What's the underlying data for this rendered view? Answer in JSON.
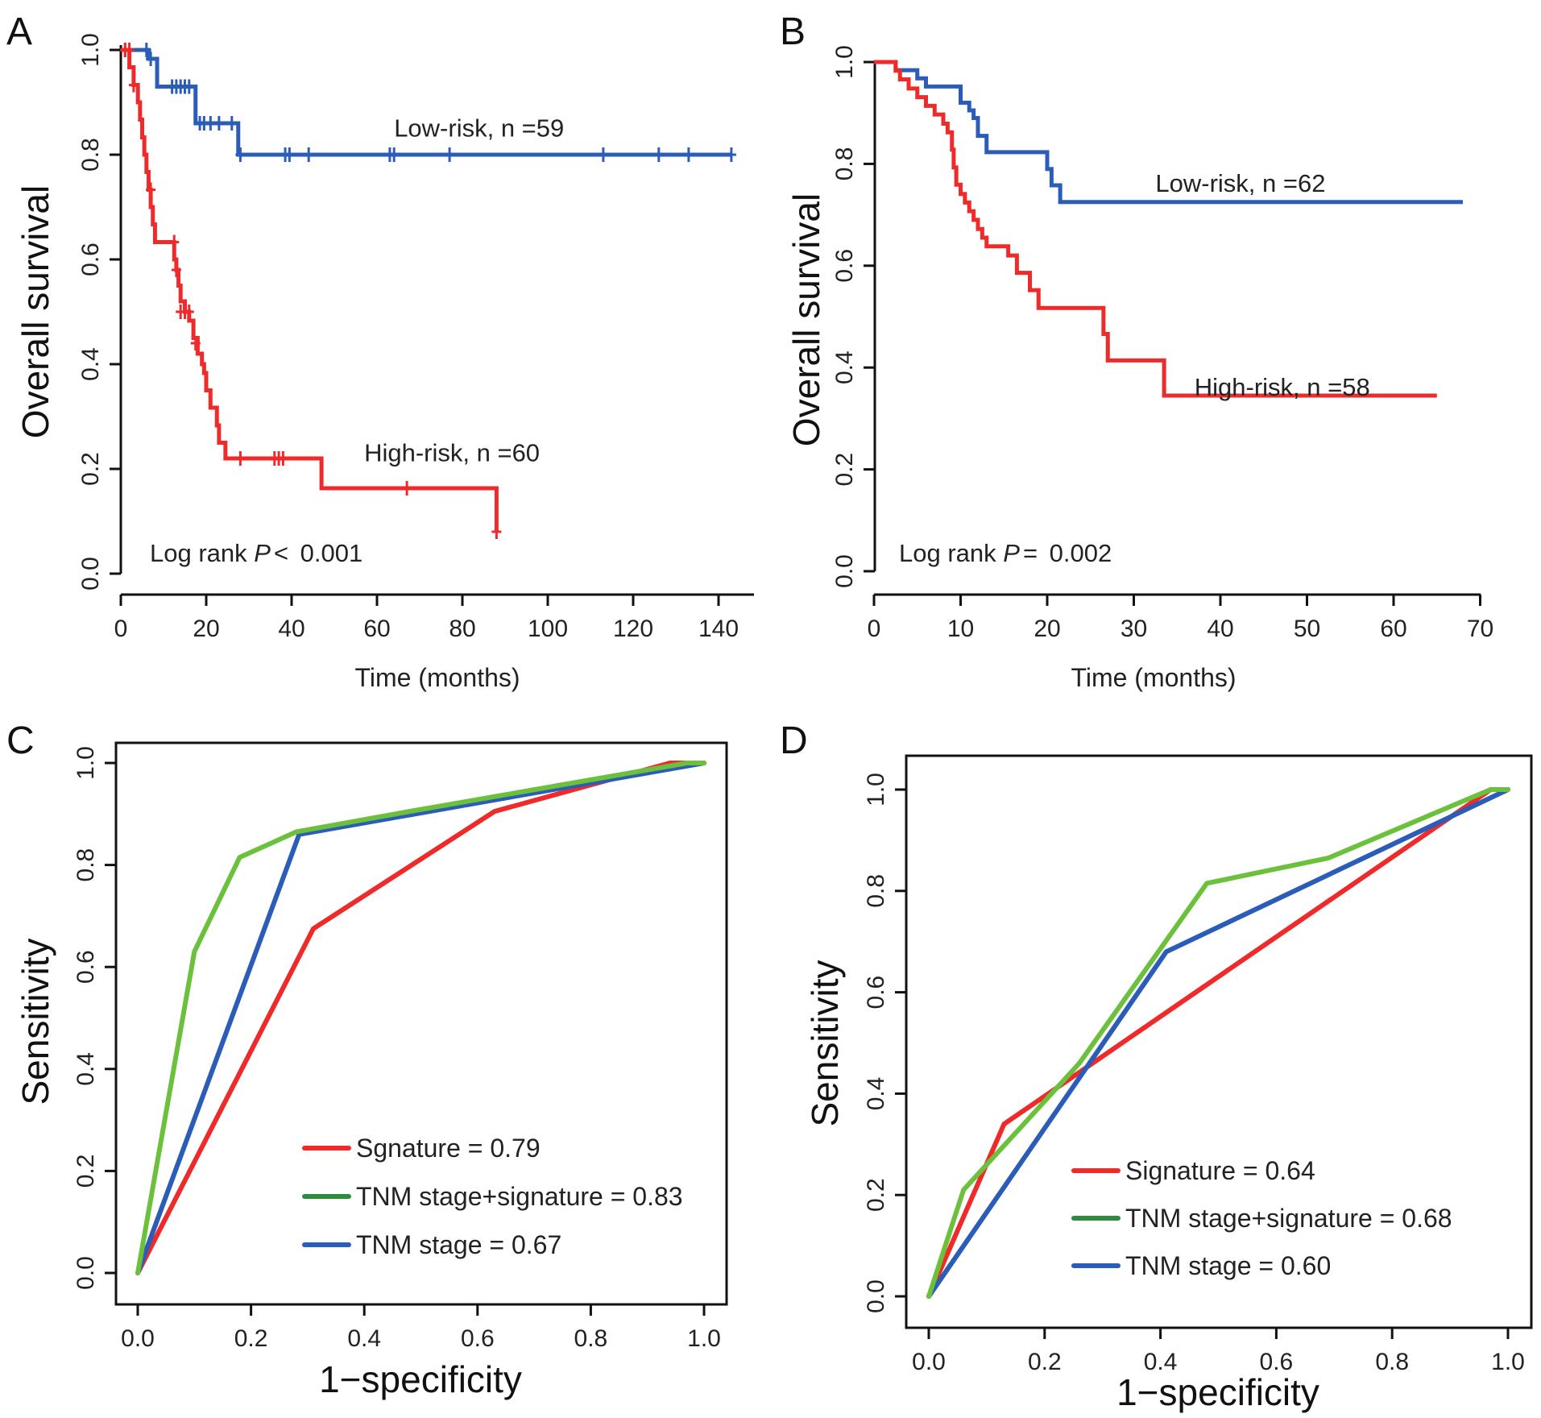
{
  "colors": {
    "low_risk": "#2a5cb8",
    "high_risk": "#ee2a2a",
    "signature": "#ee2a2a",
    "combined_curve": "#6cc13c",
    "combined_legend": "#2f8a3d",
    "tnm": "#2a5cb8",
    "axis": "#111111"
  },
  "chart_data": [
    {
      "panel": "A",
      "type": "line",
      "subtype": "kaplan-meier",
      "xlabel": "Time (months)",
      "ylabel": "Overall survival",
      "xlim": [
        0,
        145
      ],
      "ylim": [
        0,
        1
      ],
      "xticks": [
        0,
        20,
        40,
        60,
        80,
        100,
        120,
        140
      ],
      "yticks": [
        "0.0",
        "0.2",
        "0.4",
        "0.6",
        "0.8",
        "1.0"
      ],
      "annotation": {
        "prefix": "Log rank ",
        "p": "P",
        "op": "< ",
        "value": "0.001"
      },
      "series": [
        {
          "name": "Low-risk, n =59",
          "color_key": "low_risk",
          "steps": [
            [
              0,
              1.0
            ],
            [
              6.5,
              0.983
            ],
            [
              8.5,
              0.93
            ],
            [
              17.5,
              0.86
            ],
            [
              27.5,
              0.8
            ],
            [
              143,
              0.8
            ]
          ],
          "censor": [
            [
              1,
              1.0
            ],
            [
              6,
              1.0
            ],
            [
              7,
              0.983
            ],
            [
              12,
              0.93
            ],
            [
              13,
              0.93
            ],
            [
              14,
              0.93
            ],
            [
              15,
              0.93
            ],
            [
              16,
              0.93
            ],
            [
              18.5,
              0.86
            ],
            [
              19.5,
              0.86
            ],
            [
              21,
              0.86
            ],
            [
              23,
              0.86
            ],
            [
              26,
              0.86
            ],
            [
              28,
              0.8
            ],
            [
              38.5,
              0.8
            ],
            [
              39.5,
              0.8
            ],
            [
              44,
              0.8
            ],
            [
              63,
              0.8
            ],
            [
              64,
              0.8
            ],
            [
              77,
              0.8
            ],
            [
              113,
              0.8
            ],
            [
              126,
              0.8
            ],
            [
              133,
              0.8
            ],
            [
              143,
              0.8
            ]
          ]
        },
        {
          "name": "High-risk, n =60",
          "color_key": "high_risk",
          "steps": [
            [
              0,
              1.0
            ],
            [
              1.5,
              1.0
            ],
            [
              2,
              0.967
            ],
            [
              3,
              0.933
            ],
            [
              4,
              0.9
            ],
            [
              4.5,
              0.867
            ],
            [
              5,
              0.833
            ],
            [
              5.5,
              0.8
            ],
            [
              6,
              0.767
            ],
            [
              6.5,
              0.733
            ],
            [
              7,
              0.7
            ],
            [
              7.5,
              0.667
            ],
            [
              8,
              0.633
            ],
            [
              12,
              0.633
            ],
            [
              12.5,
              0.6
            ],
            [
              13,
              0.58
            ],
            [
              13.5,
              0.55
            ],
            [
              14,
              0.52
            ],
            [
              15,
              0.5
            ],
            [
              16,
              0.483
            ],
            [
              17,
              0.45
            ],
            [
              18,
              0.42
            ],
            [
              19,
              0.4
            ],
            [
              19.5,
              0.383
            ],
            [
              20,
              0.35
            ],
            [
              21,
              0.317
            ],
            [
              22.5,
              0.283
            ],
            [
              23,
              0.25
            ],
            [
              24.5,
              0.22
            ],
            [
              47,
              0.22
            ],
            [
              47,
              0.163
            ],
            [
              88,
              0.163
            ],
            [
              88,
              0.08
            ]
          ],
          "censor": [
            [
              1,
              1.0
            ],
            [
              2,
              1.0
            ],
            [
              3,
              0.933
            ],
            [
              7,
              0.733
            ],
            [
              12.5,
              0.633
            ],
            [
              13,
              0.58
            ],
            [
              14,
              0.5
            ],
            [
              15,
              0.5
            ],
            [
              16,
              0.5
            ],
            [
              17.5,
              0.44
            ],
            [
              28,
              0.22
            ],
            [
              36,
              0.22
            ],
            [
              37,
              0.22
            ],
            [
              38,
              0.22
            ],
            [
              67,
              0.163
            ],
            [
              88,
              0.08
            ]
          ]
        }
      ],
      "labels": [
        {
          "text": "Low-risk, n =59",
          "x": 64,
          "y": 0.835
        },
        {
          "text": "High-risk, n =60",
          "x": 57,
          "y": 0.215
        }
      ]
    },
    {
      "panel": "B",
      "type": "line",
      "subtype": "kaplan-meier",
      "xlabel": "Time (months)",
      "ylabel": "Overall survival",
      "xlim": [
        0,
        70
      ],
      "ylim": [
        0,
        1
      ],
      "xticks": [
        0,
        10,
        20,
        30,
        40,
        50,
        60,
        70
      ],
      "yticks": [
        "0.0",
        "0.2",
        "0.4",
        "0.6",
        "0.8",
        "1.0"
      ],
      "annotation": {
        "prefix": "Log rank ",
        "p": "P",
        "op": "= ",
        "value": "0.002"
      },
      "series": [
        {
          "name": "Low-risk, n =62",
          "color_key": "low_risk",
          "steps": [
            [
              0,
              1.0
            ],
            [
              2.5,
              1.0
            ],
            [
              2.5,
              0.984
            ],
            [
              5,
              0.984
            ],
            [
              5,
              0.968
            ],
            [
              6,
              0.968
            ],
            [
              6,
              0.952
            ],
            [
              10,
              0.952
            ],
            [
              10,
              0.92
            ],
            [
              11,
              0.92
            ],
            [
              11,
              0.905
            ],
            [
              11.5,
              0.89
            ],
            [
              12,
              0.874
            ],
            [
              12,
              0.855
            ],
            [
              13,
              0.855
            ],
            [
              13,
              0.823
            ],
            [
              20,
              0.823
            ],
            [
              20,
              0.79
            ],
            [
              20.5,
              0.79
            ],
            [
              20.5,
              0.758
            ],
            [
              21.5,
              0.758
            ],
            [
              21.5,
              0.725
            ],
            [
              68,
              0.725
            ]
          ],
          "censor": []
        },
        {
          "name": "High-risk, n =58",
          "color_key": "high_risk",
          "steps": [
            [
              0,
              1.0
            ],
            [
              2,
              1.0
            ],
            [
              2.5,
              0.983
            ],
            [
              3,
              0.966
            ],
            [
              4,
              0.948
            ],
            [
              5,
              0.931
            ],
            [
              6,
              0.914
            ],
            [
              7,
              0.897
            ],
            [
              8,
              0.879
            ],
            [
              8.5,
              0.862
            ],
            [
              9,
              0.828
            ],
            [
              9.2,
              0.793
            ],
            [
              9.5,
              0.759
            ],
            [
              10,
              0.741
            ],
            [
              10.5,
              0.724
            ],
            [
              11,
              0.707
            ],
            [
              11.5,
              0.69
            ],
            [
              12,
              0.672
            ],
            [
              12.5,
              0.655
            ],
            [
              13,
              0.638
            ],
            [
              14,
              0.638
            ],
            [
              15.5,
              0.638
            ],
            [
              15.5,
              0.62
            ],
            [
              16.5,
              0.62
            ],
            [
              16.5,
              0.586
            ],
            [
              18,
              0.586
            ],
            [
              18,
              0.552
            ],
            [
              19,
              0.552
            ],
            [
              19,
              0.517
            ],
            [
              26.5,
              0.517
            ],
            [
              26.5,
              0.466
            ],
            [
              27,
              0.466
            ],
            [
              27,
              0.414
            ],
            [
              33.5,
              0.414
            ],
            [
              33.5,
              0.345
            ],
            [
              65,
              0.345
            ]
          ],
          "censor": []
        }
      ],
      "labels": [
        {
          "text": "Low-risk, n =62",
          "x": 32.5,
          "y": 0.745
        },
        {
          "text": "High-risk, n =58",
          "x": 37,
          "y": 0.345
        }
      ]
    },
    {
      "panel": "C",
      "type": "line",
      "subtype": "roc",
      "xlabel": "1−specificity",
      "ylabel": "Sensitivity",
      "xlim": [
        0,
        1
      ],
      "ylim": [
        0,
        1
      ],
      "xticks": [
        "0.0",
        "0.2",
        "0.4",
        "0.6",
        "0.8",
        "1.0"
      ],
      "yticks": [
        "0.0",
        "0.2",
        "0.4",
        "0.6",
        "0.8",
        "1.0"
      ],
      "series": [
        {
          "name": "Sgnature = 0.79",
          "color_key": "signature",
          "legend_color_key": "signature",
          "points": [
            [
              0,
              0
            ],
            [
              0.31,
              0.675
            ],
            [
              0.63,
              0.905
            ],
            [
              0.94,
              1.0
            ],
            [
              1,
              1
            ]
          ]
        },
        {
          "name": "TNM stage+signature = 0.83",
          "color_key": "combined_curve",
          "legend_color_key": "combined_legend",
          "points": [
            [
              0,
              0
            ],
            [
              0.1,
              0.63
            ],
            [
              0.18,
              0.815
            ],
            [
              0.28,
              0.865
            ],
            [
              0.48,
              0.905
            ],
            [
              0.97,
              1.0
            ],
            [
              1,
              1
            ]
          ]
        },
        {
          "name": "TNM stage = 0.67",
          "color_key": "tnm",
          "legend_color_key": "tnm",
          "points": [
            [
              0,
              0
            ],
            [
              0.285,
              0.86
            ],
            [
              1,
              1
            ]
          ]
        }
      ]
    },
    {
      "panel": "D",
      "type": "line",
      "subtype": "roc",
      "xlabel": "1−specificity",
      "ylabel": "Sensitivity",
      "xlim": [
        0,
        1
      ],
      "ylim": [
        0,
        1
      ],
      "xticks": [
        "0.0",
        "0.2",
        "0.4",
        "0.6",
        "0.8",
        "1.0"
      ],
      "yticks": [
        "0.0",
        "0.2",
        "0.4",
        "0.6",
        "0.8",
        "1.0"
      ],
      "series": [
        {
          "name": "Signature = 0.64",
          "color_key": "signature",
          "legend_color_key": "signature",
          "points": [
            [
              0,
              0
            ],
            [
              0.13,
              0.34
            ],
            [
              0.69,
              0.78
            ],
            [
              0.97,
              1.0
            ],
            [
              1,
              1
            ]
          ]
        },
        {
          "name": "TNM stage+signature = 0.68",
          "color_key": "combined_curve",
          "legend_color_key": "combined_legend",
          "points": [
            [
              0,
              0
            ],
            [
              0.06,
              0.21
            ],
            [
              0.26,
              0.46
            ],
            [
              0.48,
              0.815
            ],
            [
              0.69,
              0.865
            ],
            [
              0.97,
              1.0
            ],
            [
              1,
              1
            ]
          ]
        },
        {
          "name": "TNM stage = 0.60",
          "color_key": "tnm",
          "legend_color_key": "tnm",
          "points": [
            [
              0,
              0
            ],
            [
              0.41,
              0.68
            ],
            [
              1,
              1
            ]
          ]
        }
      ]
    }
  ]
}
